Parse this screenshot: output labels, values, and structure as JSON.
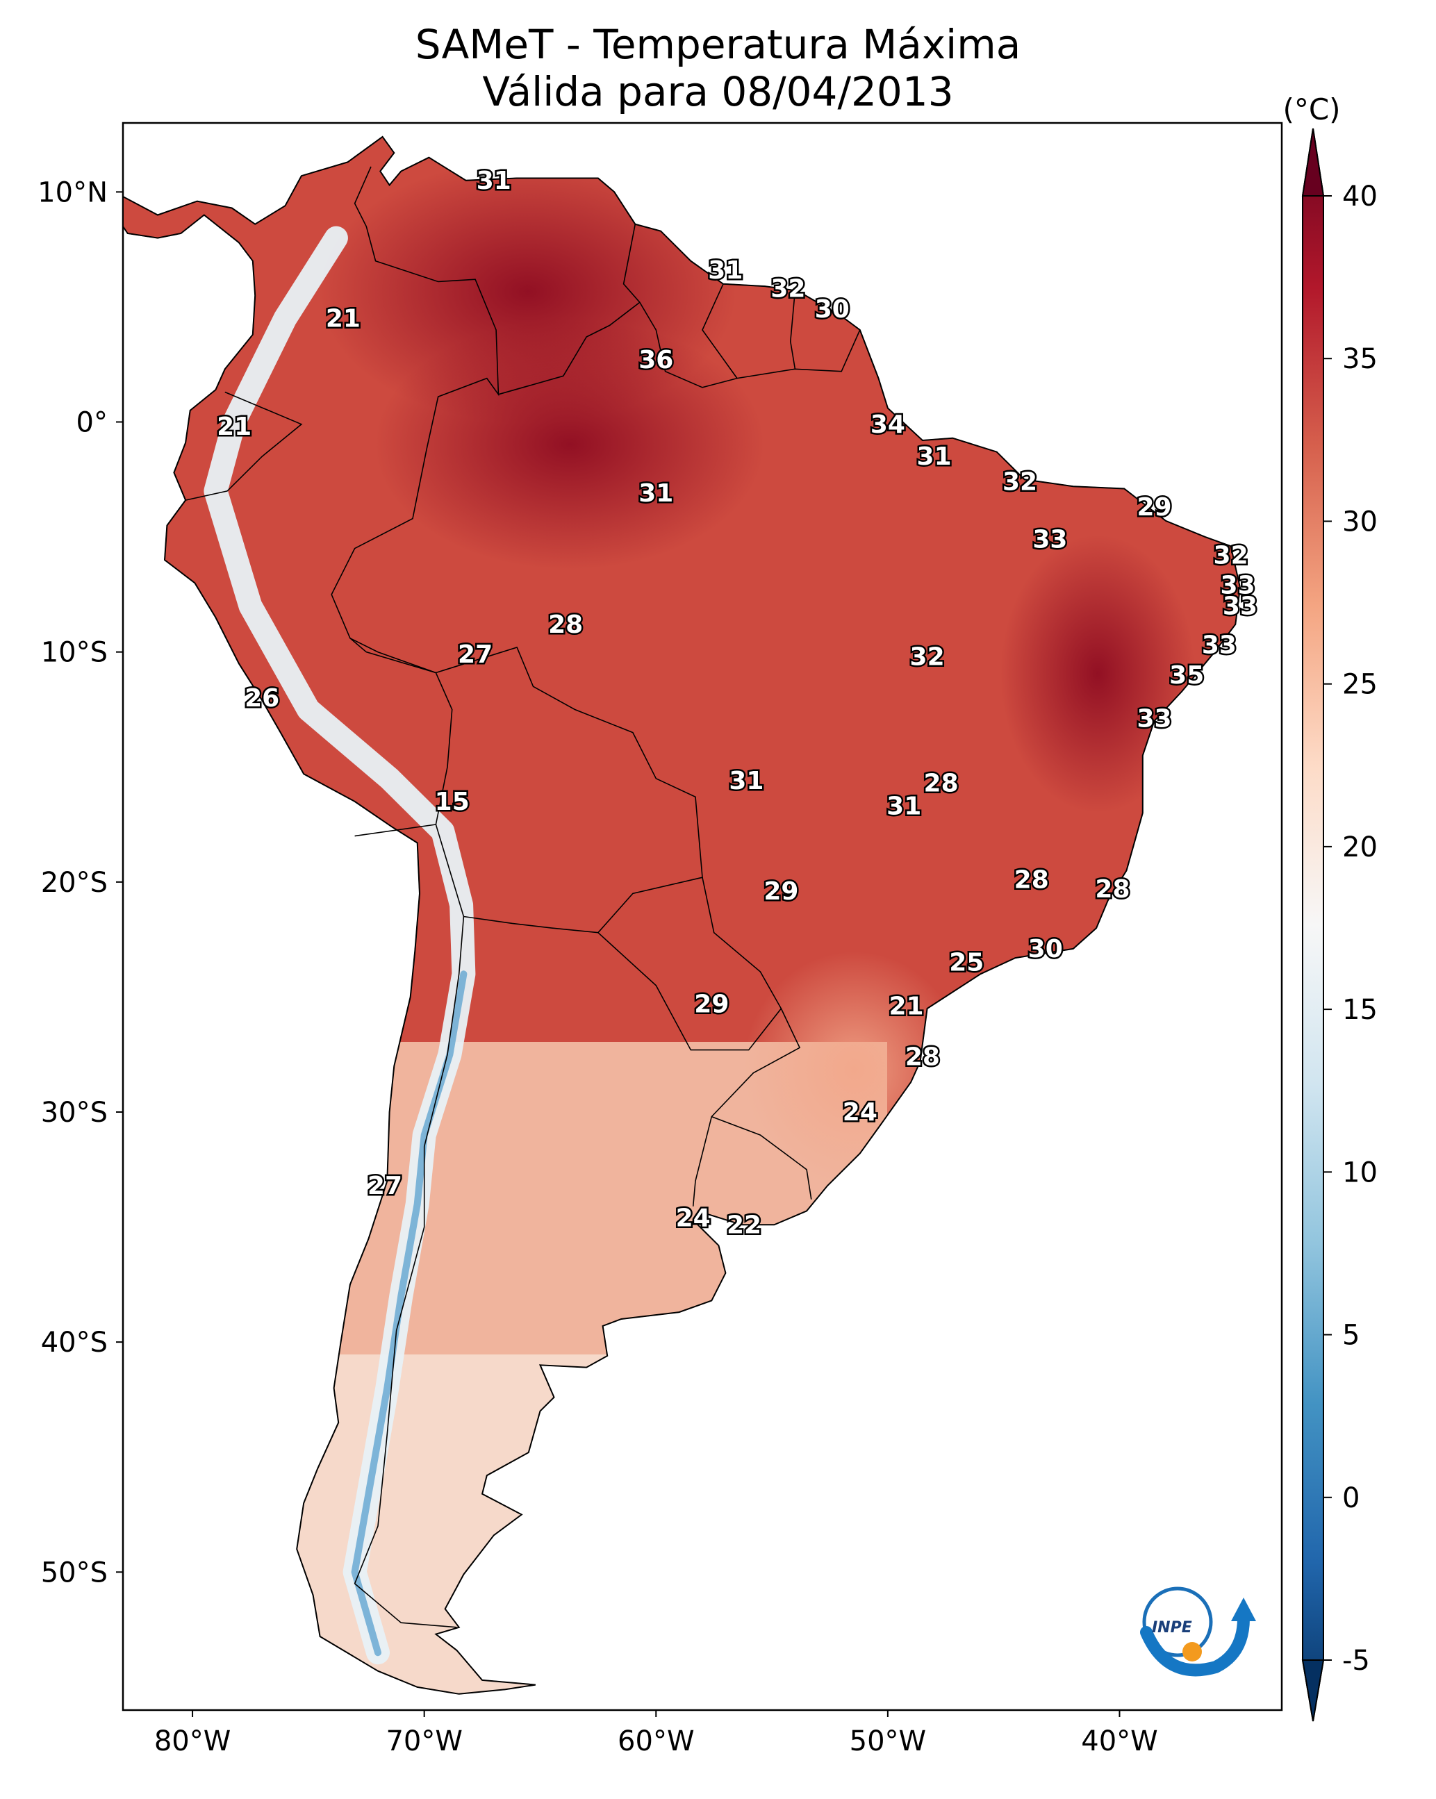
{
  "title_line1": "SAMeT - Temperatura Máxima",
  "title_line2": "Válida para 08/04/2013",
  "lat_ticks": [
    "10°N",
    "0°",
    "10°S",
    "20°S",
    "30°S",
    "40°S",
    "50°S"
  ],
  "lon_ticks": [
    "80°W",
    "70°W",
    "60°W",
    "50°W",
    "40°W"
  ],
  "colorbar": {
    "unit": "(°C)",
    "ticks": [
      "40",
      "35",
      "30",
      "25",
      "20",
      "15",
      "10",
      "5",
      "0",
      "-5"
    ],
    "colors": [
      "#053061",
      "#2166ac",
      "#4393c3",
      "#92c5de",
      "#d1e5f0",
      "#f7f7f7",
      "#fddbc7",
      "#f4a582",
      "#d6604d",
      "#b2182b",
      "#67001f"
    ]
  },
  "logo_text": "INPE",
  "map_labels": [
    {
      "value": "31",
      "lon": -67,
      "lat": 10.5
    },
    {
      "value": "31",
      "lon": -57,
      "lat": 6.6
    },
    {
      "value": "32",
      "lon": -54.3,
      "lat": 5.8
    },
    {
      "value": "30",
      "lon": -52.4,
      "lat": 4.9
    },
    {
      "value": "21",
      "lon": -73.5,
      "lat": 4.5
    },
    {
      "value": "36",
      "lon": -60,
      "lat": 2.7
    },
    {
      "value": "21",
      "lon": -78.2,
      "lat": -0.2
    },
    {
      "value": "34",
      "lon": -50,
      "lat": -0.1
    },
    {
      "value": "31",
      "lon": -48,
      "lat": -1.5
    },
    {
      "value": "31",
      "lon": -60,
      "lat": -3.1
    },
    {
      "value": "32",
      "lon": -44.3,
      "lat": -2.6
    },
    {
      "value": "29",
      "lon": -38.5,
      "lat": -3.7
    },
    {
      "value": "33",
      "lon": -43,
      "lat": -5.1
    },
    {
      "value": "32",
      "lon": -35.2,
      "lat": -5.8
    },
    {
      "value": "33",
      "lon": -34.9,
      "lat": -7.1
    },
    {
      "value": "33",
      "lon": -34.8,
      "lat": -8
    },
    {
      "value": "28",
      "lon": -63.9,
      "lat": -8.8
    },
    {
      "value": "27",
      "lon": -67.8,
      "lat": -10.1
    },
    {
      "value": "32",
      "lon": -48.3,
      "lat": -10.2
    },
    {
      "value": "33",
      "lon": -35.7,
      "lat": -9.7
    },
    {
      "value": "35",
      "lon": -37.1,
      "lat": -11
    },
    {
      "value": "26",
      "lon": -77,
      "lat": -12
    },
    {
      "value": "33",
      "lon": -38.5,
      "lat": -12.9
    },
    {
      "value": "31",
      "lon": -56.1,
      "lat": -15.6
    },
    {
      "value": "28",
      "lon": -47.7,
      "lat": -15.7
    },
    {
      "value": "31",
      "lon": -49.3,
      "lat": -16.7
    },
    {
      "value": "15",
      "lon": -68.8,
      "lat": -16.5
    },
    {
      "value": "28",
      "lon": -43.8,
      "lat": -19.9
    },
    {
      "value": "28",
      "lon": -40.3,
      "lat": -20.3
    },
    {
      "value": "29",
      "lon": -54.6,
      "lat": -20.4
    },
    {
      "value": "30",
      "lon": -43.2,
      "lat": -22.9
    },
    {
      "value": "25",
      "lon": -46.6,
      "lat": -23.5
    },
    {
      "value": "29",
      "lon": -57.6,
      "lat": -25.3
    },
    {
      "value": "21",
      "lon": -49.2,
      "lat": -25.4
    },
    {
      "value": "28",
      "lon": -48.5,
      "lat": -27.6
    },
    {
      "value": "24",
      "lon": -51.2,
      "lat": -30
    },
    {
      "value": "27",
      "lon": -71.7,
      "lat": -33.2
    },
    {
      "value": "24",
      "lon": -58.4,
      "lat": -34.6
    },
    {
      "value": "22",
      "lon": -56.2,
      "lat": -34.9
    }
  ]
}
